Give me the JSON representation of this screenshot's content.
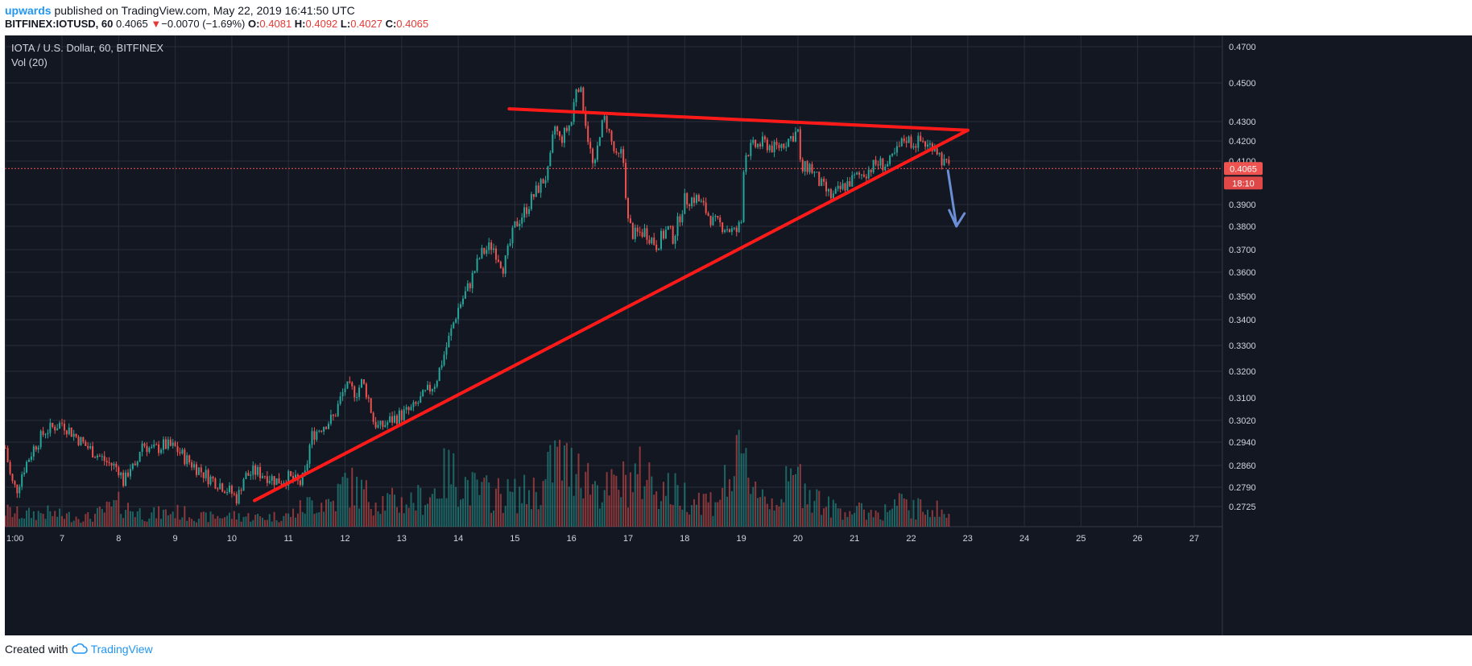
{
  "header": {
    "author": "upwards",
    "published_text": " published on TradingView.com, May 22, 2019 16:41:50 UTC",
    "symbol": "BITFINEX:IOTUSD, 60",
    "last": "0.4065",
    "change_arrow": "▼",
    "change": "−0.0070 (−1.69%)",
    "o_label": "O:",
    "o_val": "0.4081",
    "h_label": "H:",
    "h_val": "0.4092",
    "l_label": "L:",
    "l_val": "0.4027",
    "c_label": "C:",
    "c_val": "0.4065"
  },
  "chart_overlay": {
    "title": "IOTA / U.S. Dollar, 60, BITFINEX",
    "volume_label": "Vol (20)"
  },
  "footer": {
    "created_with": "Created with",
    "brand": "TradingView",
    "brand_icon": "tradingview-cloud-icon"
  },
  "colors": {
    "background": "#131722",
    "grid": "#2a2e39",
    "up": "#26a69a",
    "down": "#ef5350",
    "trendline": "#ff1a1a",
    "arrow": "#6b8fd6",
    "axis_text": "#d1d4dc"
  },
  "chart_data": {
    "type": "candlestick",
    "timeframe": "60",
    "y_axis_labels": [
      "0.4700",
      "0.4500",
      "0.4300",
      "0.4200",
      "0.4100",
      "0.3900",
      "0.3800",
      "0.3700",
      "0.3600",
      "0.3500",
      "0.3400",
      "0.3300",
      "0.3200",
      "0.3100",
      "0.3020",
      "0.2940",
      "0.2860",
      "0.2790",
      "0.2725"
    ],
    "y_axis_values": [
      0.47,
      0.45,
      0.43,
      0.42,
      0.41,
      0.39,
      0.38,
      0.37,
      0.36,
      0.35,
      0.34,
      0.33,
      0.32,
      0.31,
      0.302,
      0.294,
      0.286,
      0.279,
      0.2725
    ],
    "y_scale": "log",
    "x_axis_labels": [
      "1:00",
      "7",
      "8",
      "9",
      "10",
      "11",
      "12",
      "13",
      "14",
      "15",
      "16",
      "17",
      "18",
      "19",
      "20",
      "21",
      "22",
      "23",
      "24",
      "25",
      "26",
      "27"
    ],
    "x_axis_days": [
      6,
      7,
      8,
      9,
      10,
      11,
      12,
      13,
      14,
      15,
      16,
      17,
      18,
      19,
      20,
      21,
      22,
      23,
      24,
      25,
      26,
      27
    ],
    "current_price": 0.4065,
    "current_price_label": "0.4065",
    "countdown_label": "18:10",
    "price_path": [
      [
        6.0,
        0.292
      ],
      [
        6.1,
        0.281
      ],
      [
        6.2,
        0.278
      ],
      [
        6.3,
        0.284
      ],
      [
        6.5,
        0.292
      ],
      [
        6.7,
        0.298
      ],
      [
        6.9,
        0.3
      ],
      [
        7.0,
        0.301
      ],
      [
        7.2,
        0.297
      ],
      [
        7.4,
        0.293
      ],
      [
        7.6,
        0.29
      ],
      [
        7.8,
        0.287
      ],
      [
        8.0,
        0.285
      ],
      [
        8.1,
        0.28
      ],
      [
        8.2,
        0.286
      ],
      [
        8.3,
        0.284
      ],
      [
        8.4,
        0.294
      ],
      [
        8.6,
        0.291
      ],
      [
        8.8,
        0.293
      ],
      [
        9.0,
        0.292
      ],
      [
        9.2,
        0.288
      ],
      [
        9.4,
        0.285
      ],
      [
        9.6,
        0.282
      ],
      [
        9.8,
        0.28
      ],
      [
        10.0,
        0.277
      ],
      [
        10.1,
        0.275
      ],
      [
        10.2,
        0.282
      ],
      [
        10.4,
        0.284
      ],
      [
        10.6,
        0.283
      ],
      [
        10.8,
        0.281
      ],
      [
        11.0,
        0.282
      ],
      [
        11.2,
        0.28
      ],
      [
        11.3,
        0.283
      ],
      [
        11.4,
        0.296
      ],
      [
        11.6,
        0.3
      ],
      [
        11.8,
        0.303
      ],
      [
        12.0,
        0.314
      ],
      [
        12.2,
        0.312
      ],
      [
        12.3,
        0.316
      ],
      [
        12.4,
        0.311
      ],
      [
        12.5,
        0.302
      ],
      [
        12.6,
        0.299
      ],
      [
        12.8,
        0.302
      ],
      [
        13.0,
        0.304
      ],
      [
        13.2,
        0.306
      ],
      [
        13.4,
        0.311
      ],
      [
        13.6,
        0.316
      ],
      [
        13.8,
        0.33
      ],
      [
        14.0,
        0.345
      ],
      [
        14.2,
        0.355
      ],
      [
        14.4,
        0.368
      ],
      [
        14.6,
        0.372
      ],
      [
        14.8,
        0.362
      ],
      [
        15.0,
        0.38
      ],
      [
        15.2,
        0.388
      ],
      [
        15.4,
        0.397
      ],
      [
        15.6,
        0.405
      ],
      [
        15.7,
        0.428
      ],
      [
        15.8,
        0.42
      ],
      [
        16.0,
        0.43
      ],
      [
        16.1,
        0.452
      ],
      [
        16.2,
        0.44
      ],
      [
        16.3,
        0.42
      ],
      [
        16.4,
        0.404
      ],
      [
        16.5,
        0.425
      ],
      [
        16.6,
        0.432
      ],
      [
        16.7,
        0.42
      ],
      [
        16.8,
        0.41
      ],
      [
        16.9,
        0.415
      ],
      [
        17.0,
        0.382
      ],
      [
        17.1,
        0.376
      ],
      [
        17.3,
        0.378
      ],
      [
        17.5,
        0.372
      ],
      [
        17.7,
        0.379
      ],
      [
        17.8,
        0.375
      ],
      [
        18.0,
        0.392
      ],
      [
        18.2,
        0.393
      ],
      [
        18.3,
        0.39
      ],
      [
        18.5,
        0.382
      ],
      [
        18.7,
        0.38
      ],
      [
        18.9,
        0.377
      ],
      [
        19.0,
        0.382
      ],
      [
        19.05,
        0.413
      ],
      [
        19.2,
        0.417
      ],
      [
        19.4,
        0.419
      ],
      [
        19.6,
        0.416
      ],
      [
        19.8,
        0.42
      ],
      [
        20.0,
        0.425
      ],
      [
        20.05,
        0.405
      ],
      [
        20.2,
        0.408
      ],
      [
        20.4,
        0.399
      ],
      [
        20.6,
        0.393
      ],
      [
        20.8,
        0.398
      ],
      [
        21.0,
        0.402
      ],
      [
        21.2,
        0.405
      ],
      [
        21.4,
        0.409
      ],
      [
        21.6,
        0.408
      ],
      [
        21.8,
        0.417
      ],
      [
        21.9,
        0.422
      ],
      [
        22.0,
        0.419
      ],
      [
        22.2,
        0.42
      ],
      [
        22.3,
        0.417
      ],
      [
        22.4,
        0.419
      ],
      [
        22.5,
        0.413
      ],
      [
        22.6,
        0.408
      ],
      [
        22.7,
        0.4065
      ]
    ],
    "volume_path": [
      [
        6.0,
        0.2
      ],
      [
        6.3,
        0.15
      ],
      [
        6.7,
        0.18
      ],
      [
        7.0,
        0.14
      ],
      [
        7.5,
        0.12
      ],
      [
        8.0,
        0.28
      ],
      [
        8.5,
        0.15
      ],
      [
        9.0,
        0.19
      ],
      [
        9.5,
        0.12
      ],
      [
        10.0,
        0.14
      ],
      [
        10.5,
        0.12
      ],
      [
        11.0,
        0.14
      ],
      [
        11.4,
        0.3
      ],
      [
        11.8,
        0.32
      ],
      [
        12.0,
        0.55
      ],
      [
        12.5,
        0.35
      ],
      [
        13.0,
        0.3
      ],
      [
        13.5,
        0.38
      ],
      [
        13.8,
        0.68
      ],
      [
        14.0,
        0.62
      ],
      [
        14.3,
        0.45
      ],
      [
        14.6,
        0.42
      ],
      [
        15.0,
        0.4
      ],
      [
        15.5,
        0.48
      ],
      [
        15.7,
        0.88
      ],
      [
        16.0,
        0.72
      ],
      [
        16.1,
        0.95
      ],
      [
        16.3,
        0.6
      ],
      [
        16.6,
        0.45
      ],
      [
        17.0,
        0.58
      ],
      [
        17.3,
        0.68
      ],
      [
        17.5,
        0.52
      ],
      [
        18.0,
        0.4
      ],
      [
        18.5,
        0.32
      ],
      [
        19.0,
        0.82
      ],
      [
        19.5,
        0.3
      ],
      [
        20.0,
        0.62
      ],
      [
        20.5,
        0.25
      ],
      [
        21.0,
        0.2
      ],
      [
        21.5,
        0.18
      ],
      [
        21.8,
        0.3
      ],
      [
        22.0,
        0.22
      ],
      [
        22.4,
        0.25
      ],
      [
        22.7,
        0.12
      ]
    ],
    "drawings": {
      "rising_trendline": {
        "from": [
          10.4,
          0.2745
        ],
        "to": [
          23.0,
          0.4255
        ]
      },
      "falling_trendline": {
        "from": [
          14.9,
          0.4365
        ],
        "to": [
          23.0,
          0.4255
        ]
      },
      "arrow": {
        "from": [
          22.65,
          0.4055
        ],
        "to": [
          22.8,
          0.38
        ]
      }
    }
  }
}
